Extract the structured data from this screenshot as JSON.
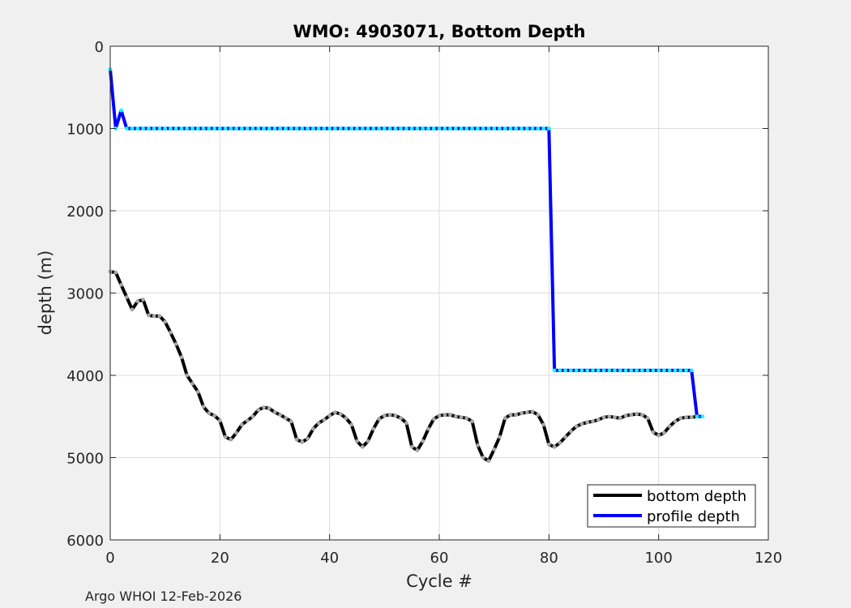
{
  "footer": "Argo WHOI 12-Feb-2026",
  "chart_data": {
    "type": "line",
    "title": "WMO: 4903071, Bottom Depth",
    "xlabel": "Cycle #",
    "ylabel": "depth (m)",
    "xlim": [
      0,
      120
    ],
    "ylim": [
      0,
      6000
    ],
    "y_reversed": true,
    "xticks": [
      0,
      20,
      40,
      60,
      80,
      100,
      120
    ],
    "yticks": [
      0,
      1000,
      2000,
      3000,
      4000,
      5000,
      6000
    ],
    "grid": true,
    "legend_position": "bottom-right",
    "series": [
      {
        "name": "bottom depth",
        "color": "#000000",
        "style": "line",
        "x": [
          0,
          1,
          2,
          3,
          4,
          5,
          6,
          7,
          8,
          9,
          10,
          11,
          12,
          13,
          14,
          15,
          16,
          17,
          18,
          19,
          20,
          21,
          22,
          23,
          24,
          25,
          26,
          27,
          28,
          29,
          30,
          31,
          32,
          33,
          34,
          35,
          36,
          37,
          38,
          39,
          40,
          41,
          42,
          43,
          44,
          45,
          46,
          47,
          48,
          49,
          50,
          51,
          52,
          53,
          54,
          55,
          56,
          57,
          58,
          59,
          60,
          61,
          62,
          63,
          64,
          65,
          66,
          67,
          68,
          69,
          70,
          71,
          72,
          73,
          74,
          75,
          76,
          77,
          78,
          79,
          80,
          81,
          82,
          83,
          84,
          85,
          86,
          87,
          88,
          89,
          90,
          91,
          92,
          93,
          94,
          95,
          96,
          97,
          98,
          99,
          100,
          101,
          102,
          103,
          104,
          105,
          106,
          107
        ],
        "y": [
          2740,
          2750,
          2900,
          3050,
          3200,
          3100,
          3080,
          3270,
          3280,
          3280,
          3350,
          3480,
          3620,
          3780,
          4000,
          4100,
          4200,
          4380,
          4460,
          4490,
          4550,
          4750,
          4780,
          4700,
          4600,
          4550,
          4500,
          4420,
          4390,
          4400,
          4450,
          4480,
          4520,
          4560,
          4780,
          4810,
          4770,
          4650,
          4580,
          4540,
          4490,
          4450,
          4470,
          4520,
          4600,
          4800,
          4870,
          4800,
          4650,
          4530,
          4490,
          4480,
          4490,
          4520,
          4580,
          4870,
          4910,
          4800,
          4650,
          4530,
          4490,
          4480,
          4480,
          4500,
          4510,
          4520,
          4560,
          4850,
          5000,
          5040,
          4900,
          4750,
          4520,
          4480,
          4480,
          4460,
          4450,
          4440,
          4480,
          4600,
          4840,
          4870,
          4820,
          4750,
          4680,
          4620,
          4590,
          4570,
          4560,
          4540,
          4510,
          4500,
          4510,
          4520,
          4490,
          4480,
          4470,
          4480,
          4520,
          4690,
          4730,
          4700,
          4620,
          4560,
          4520,
          4510,
          4510,
          4500
        ]
      },
      {
        "name": "profile depth",
        "color": "#0000ff",
        "style": "line",
        "x": [
          0,
          1,
          2,
          3,
          4,
          5,
          6,
          7,
          8,
          9,
          10,
          11,
          12,
          13,
          14,
          15,
          16,
          17,
          18,
          19,
          20,
          21,
          22,
          23,
          24,
          25,
          26,
          27,
          28,
          29,
          30,
          31,
          32,
          33,
          34,
          35,
          36,
          37,
          38,
          39,
          40,
          41,
          42,
          43,
          44,
          45,
          46,
          47,
          48,
          49,
          50,
          51,
          52,
          53,
          54,
          55,
          56,
          57,
          58,
          59,
          60,
          61,
          62,
          63,
          64,
          65,
          66,
          67,
          68,
          69,
          70,
          71,
          72,
          73,
          74,
          75,
          76,
          77,
          78,
          79,
          80,
          81,
          82,
          83,
          84,
          85,
          86,
          87,
          88,
          89,
          90,
          91,
          92,
          93,
          94,
          95,
          96,
          97,
          98,
          99,
          100,
          101,
          102,
          103,
          104,
          105,
          106,
          107,
          108
        ],
        "y": [
          280,
          1000,
          780,
          1000,
          1000,
          1000,
          1000,
          1000,
          1000,
          1000,
          1000,
          1000,
          1000,
          1000,
          1000,
          1000,
          1000,
          1000,
          1000,
          1000,
          1000,
          1000,
          1000,
          1000,
          1000,
          1000,
          1000,
          1000,
          1000,
          1000,
          1000,
          1000,
          1000,
          1000,
          1000,
          1000,
          1000,
          1000,
          1000,
          1000,
          1000,
          1000,
          1000,
          1000,
          1000,
          1000,
          1000,
          1000,
          1000,
          1000,
          1000,
          1000,
          1000,
          1000,
          1000,
          1000,
          1000,
          1000,
          1000,
          1000,
          1000,
          1000,
          1000,
          1000,
          1000,
          1000,
          1000,
          1000,
          1000,
          1000,
          1000,
          1000,
          1000,
          1000,
          1000,
          1000,
          1000,
          1000,
          1000,
          1000,
          1000,
          3940,
          3940,
          3940,
          3940,
          3940,
          3940,
          3940,
          3940,
          3940,
          3940,
          3940,
          3940,
          3940,
          3940,
          3940,
          3940,
          3940,
          3940,
          3940,
          3940,
          3940,
          3940,
          3940,
          3940,
          3940,
          3940,
          4500,
          4500
        ]
      }
    ],
    "markers": [
      {
        "label_for": "bottom depth",
        "color": "#a6a6a6"
      },
      {
        "label_for": "profile depth",
        "color": "#00ffff"
      }
    ]
  }
}
